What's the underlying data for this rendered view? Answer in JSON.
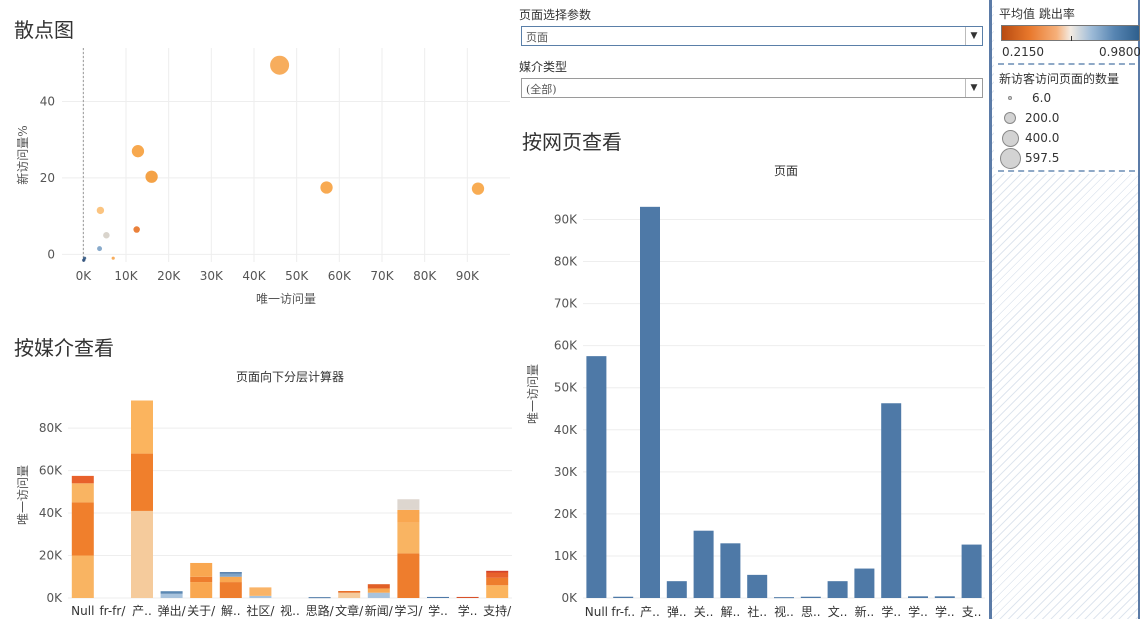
{
  "scatter": {
    "title": "散点图",
    "ylabel": "新访问量%",
    "xlabel": "唯一访问量",
    "x_ticks": [
      "0K",
      "10K",
      "20K",
      "30K",
      "40K",
      "50K",
      "60K",
      "70K",
      "80K",
      "90K"
    ],
    "y_ticks": [
      "0",
      "20",
      "40"
    ]
  },
  "controls": {
    "page_param_label": "页面选择参数",
    "page_param_value": "页面",
    "media_label": "媒介类型",
    "media_value": "(全部)"
  },
  "media_chart": {
    "title": "按媒介查看",
    "subtitle": "页面向下分层计算器",
    "ylabel": "唯一访问量",
    "y_ticks": [
      "0K",
      "20K",
      "40K",
      "60K",
      "80K"
    ],
    "categories": [
      "Null",
      "fr-fr/",
      "产..",
      "弹出/",
      "关于/",
      "解..",
      "社区/",
      "视..",
      "思路/",
      "文章/",
      "新闻/",
      "学习/",
      "学..",
      "学..",
      "支持/"
    ]
  },
  "page_chart": {
    "title": "按网页查看",
    "subtitle": "页面",
    "ylabel": "唯一访问量",
    "y_ticks": [
      "0K",
      "10K",
      "20K",
      "30K",
      "40K",
      "50K",
      "60K",
      "70K",
      "80K",
      "90K"
    ],
    "categories": [
      "Null",
      "fr-f..",
      "产..",
      "弹..",
      "关..",
      "解..",
      "社..",
      "视..",
      "思..",
      "文..",
      "新..",
      "学..",
      "学..",
      "学..",
      "支.."
    ]
  },
  "legend": {
    "bounce_title": "平均值 跳出率",
    "bounce_min": "0.2150",
    "bounce_max": "0.9800",
    "size_title": "新访客访问页面的数量",
    "sizes": [
      "6.0",
      "200.0",
      "400.0",
      "597.5"
    ]
  },
  "colors": {
    "blue": "#4e79a7",
    "orange_dark": "#e8702a",
    "orange_light": "#f9a750",
    "peach": "#f3c99a"
  },
  "chart_data": [
    {
      "type": "scatter",
      "title": "散点图",
      "xlabel": "唯一访问量",
      "ylabel": "新访问量%",
      "xlim": [
        -5000,
        100000
      ],
      "ylim": [
        -2,
        54
      ],
      "points": [
        {
          "x": 46000,
          "y": 49.5,
          "size": 597.5,
          "color": "#f6a64f"
        },
        {
          "x": 12800,
          "y": 27,
          "size": 250,
          "color": "#f6a13f"
        },
        {
          "x": 16000,
          "y": 20.3,
          "size": 250,
          "color": "#f39a37"
        },
        {
          "x": 57000,
          "y": 17.5,
          "size": 250,
          "color": "#f7a343"
        },
        {
          "x": 92500,
          "y": 17.2,
          "size": 250,
          "color": "#f7a544"
        },
        {
          "x": 4000,
          "y": 11.5,
          "size": 90,
          "color": "#fbbf75"
        },
        {
          "x": 5400,
          "y": 5,
          "size": 70,
          "color": "#d6d0c8"
        },
        {
          "x": 12500,
          "y": 6.5,
          "size": 70,
          "color": "#e8762a"
        },
        {
          "x": 3800,
          "y": 1.5,
          "size": 40,
          "color": "#7ea3c7"
        },
        {
          "x": 7000,
          "y": -1,
          "size": 15,
          "color": "#f6a64f"
        },
        {
          "x": 300,
          "y": -1,
          "size": 10,
          "color": "#3b5f88"
        },
        {
          "x": 100,
          "y": -1.5,
          "size": 6,
          "color": "#2d4f7c"
        }
      ]
    },
    {
      "type": "bar",
      "stacked": true,
      "title": "页面向下分层计算器",
      "ylabel": "唯一访问量",
      "ylim": [
        0,
        97000
      ],
      "categories": [
        "Null",
        "fr-fr/",
        "产..",
        "弹出/",
        "关于/",
        "解..",
        "社区/",
        "视..",
        "思路/",
        "文章/",
        "新闻/",
        "学习/",
        "学..",
        "学..",
        "支持/"
      ],
      "stacks": [
        [
          {
            "v": 20000,
            "c": "#f9b462"
          },
          {
            "v": 25000,
            "c": "#f07f2c"
          },
          {
            "v": 9000,
            "c": "#f9b462"
          },
          {
            "v": 3500,
            "c": "#e8612b"
          }
        ],
        [],
        [
          {
            "v": 41000,
            "c": "#f5cb9c"
          },
          {
            "v": 27000,
            "c": "#f07f2c"
          },
          {
            "v": 25000,
            "c": "#fbb45e"
          }
        ],
        [
          {
            "v": 2000,
            "c": "#a8c3dd"
          },
          {
            "v": 1200,
            "c": "#5b88b3"
          }
        ],
        [
          {
            "v": 7500,
            "c": "#f9a750"
          },
          {
            "v": 2500,
            "c": "#ee7d2d"
          },
          {
            "v": 6500,
            "c": "#f9a750"
          }
        ],
        [
          {
            "v": 7500,
            "c": "#ee7d2d"
          },
          {
            "v": 2500,
            "c": "#f9a750"
          },
          {
            "v": 1500,
            "c": "#7ea3c7"
          },
          {
            "v": 700,
            "c": "#4e79a7"
          }
        ],
        [
          {
            "v": 1000,
            "c": "#a8c3dd"
          },
          {
            "v": 4000,
            "c": "#f9b468"
          }
        ],
        [],
        [
          {
            "v": 400,
            "c": "#4e79a7"
          }
        ],
        [
          {
            "v": 2500,
            "c": "#f5cb9c"
          },
          {
            "v": 800,
            "c": "#e8702a"
          }
        ],
        [
          {
            "v": 2500,
            "c": "#a8c3dd"
          },
          {
            "v": 2000,
            "c": "#f9a750"
          },
          {
            "v": 2000,
            "c": "#e15f26"
          }
        ],
        [
          {
            "v": 21000,
            "c": "#ee7d2d"
          },
          {
            "v": 14500,
            "c": "#f9b462"
          },
          {
            "v": 6000,
            "c": "#f9a750"
          },
          {
            "v": 5000,
            "c": "#ddd6cf"
          }
        ],
        [
          {
            "v": 500,
            "c": "#4e79a7"
          }
        ],
        [
          {
            "v": 500,
            "c": "#d8512a"
          }
        ],
        [
          {
            "v": 6000,
            "c": "#fbb45e"
          },
          {
            "v": 3500,
            "c": "#ee7d2d"
          },
          {
            "v": 2500,
            "c": "#e8612b"
          },
          {
            "v": 800,
            "c": "#d4432a"
          }
        ]
      ]
    },
    {
      "type": "bar",
      "title": "页面",
      "ylabel": "唯一访问量",
      "ylim": [
        0,
        97000
      ],
      "categories": [
        "Null",
        "fr-f..",
        "产..",
        "弹..",
        "关..",
        "解..",
        "社..",
        "视..",
        "思..",
        "文..",
        "新..",
        "学..",
        "学..",
        "学..",
        "支.."
      ],
      "values": [
        57500,
        300,
        93000,
        4000,
        16000,
        13000,
        5500,
        200,
        300,
        4000,
        7000,
        46300,
        400,
        400,
        12700
      ]
    }
  ]
}
